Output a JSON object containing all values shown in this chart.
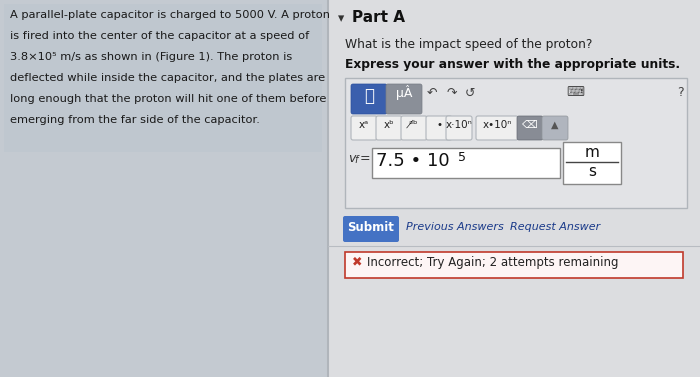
{
  "page_bg": "#c9ced4",
  "left_panel_bg": "#c4cad1",
  "left_text_bg": "#bfc7cf",
  "right_panel_bg": "#dcdde0",
  "divider_color": "#b0b5bb",
  "left_text_lines": [
    "A parallel-plate capacitor is charged to 5000 V. A proton",
    "is fired into the center of the capacitor at a speed of",
    "3.8×10⁵ m/s as shown in (Figure 1). The proton is",
    "deflected while inside the capacitor, and the plates are",
    "long enough that the proton will hit one of them before",
    "emerging from the far side of the capacitor."
  ],
  "part_a": "Part A",
  "question": "What is the impact speed of the proton?",
  "instruction": "Express your answer with the appropriate units.",
  "toolbar_bg": "#e2e3e6",
  "toolbar_border": "#b0b5bb",
  "blue_btn_color": "#3a5fad",
  "grey_btn_color": "#8a8f98",
  "answer_value": "7.5 • 10",
  "answer_exp": "5",
  "unit_top": "m",
  "unit_bottom": "s",
  "submit_bg": "#4472c4",
  "submit_text": "Submit",
  "prev_answers": "Previous Answers",
  "req_answer": "Request Answer",
  "incorrect_text": "Incorrect; Try Again; 2 attempts remaining",
  "incorrect_border": "#c0392b",
  "incorrect_bg": "#fdf5f5"
}
